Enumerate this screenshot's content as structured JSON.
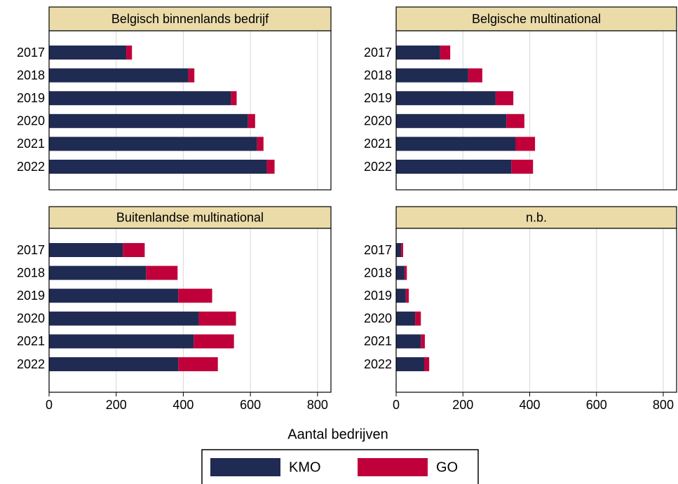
{
  "xlabel": "Aantal bedrijven",
  "chart_data": [
    {
      "type": "bar",
      "orientation": "horizontal",
      "stacked": true,
      "title": "Belgisch binnenlands bedrijf",
      "categories": [
        "2017",
        "2018",
        "2019",
        "2020",
        "2021",
        "2022"
      ],
      "series": [
        {
          "name": "KMO",
          "color": "#1f2b52",
          "values": [
            230,
            415,
            542,
            593,
            620,
            649
          ]
        },
        {
          "name": "GO",
          "color": "#c0003a",
          "values": [
            17,
            18,
            17,
            21,
            19,
            23
          ]
        }
      ],
      "xlim": [
        0,
        840
      ],
      "xticks": [
        0,
        200,
        400,
        600,
        800
      ],
      "grid": true
    },
    {
      "type": "bar",
      "orientation": "horizontal",
      "stacked": true,
      "title": "Belgische multinational",
      "categories": [
        "2017",
        "2018",
        "2019",
        "2020",
        "2021",
        "2022"
      ],
      "series": [
        {
          "name": "KMO",
          "color": "#1f2b52",
          "values": [
            132,
            216,
            298,
            330,
            357,
            345
          ]
        },
        {
          "name": "GO",
          "color": "#c0003a",
          "values": [
            30,
            42,
            53,
            54,
            59,
            65
          ]
        }
      ],
      "xlim": [
        0,
        840
      ],
      "xticks": [
        0,
        200,
        400,
        600,
        800
      ],
      "grid": true
    },
    {
      "type": "bar",
      "orientation": "horizontal",
      "stacked": true,
      "title": "Buitenlandse multinational",
      "categories": [
        "2017",
        "2018",
        "2019",
        "2020",
        "2021",
        "2022"
      ],
      "series": [
        {
          "name": "KMO",
          "color": "#1f2b52",
          "values": [
            220,
            289,
            385,
            446,
            431,
            385
          ]
        },
        {
          "name": "GO",
          "color": "#c0003a",
          "values": [
            65,
            94,
            101,
            111,
            120,
            118
          ]
        }
      ],
      "xlim": [
        0,
        840
      ],
      "xticks": [
        0,
        200,
        400,
        600,
        800
      ],
      "grid": true
    },
    {
      "type": "bar",
      "orientation": "horizontal",
      "stacked": true,
      "title": "n.b.",
      "categories": [
        "2017",
        "2018",
        "2019",
        "2020",
        "2021",
        "2022"
      ],
      "series": [
        {
          "name": "KMO",
          "color": "#1f2b52",
          "values": [
            15,
            25,
            29,
            57,
            74,
            84
          ]
        },
        {
          "name": "GO",
          "color": "#c0003a",
          "values": [
            6,
            7,
            9,
            17,
            12,
            15
          ]
        }
      ],
      "xlim": [
        0,
        840
      ],
      "xticks": [
        0,
        200,
        400,
        600,
        800
      ],
      "grid": true
    }
  ]
}
